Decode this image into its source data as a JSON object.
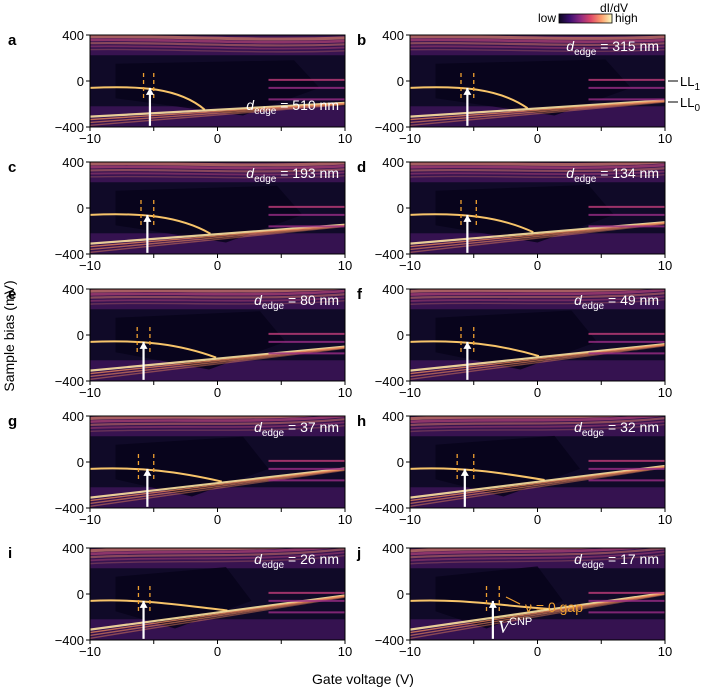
{
  "figure": {
    "xlabel": "Gate voltage (V)",
    "ylabel": "Sample bias (mV)",
    "colorbar": {
      "title": "dI/dV",
      "low_label": "low",
      "high_label": "high",
      "colors": [
        "#0d0820",
        "#3b0f6f",
        "#8c2981",
        "#de4968",
        "#fe9f6d",
        "#fcfdbf"
      ]
    },
    "ll_labels": {
      "ll1": "LL",
      "ll1_sub": "1",
      "ll0": "LL",
      "ll0_sub": "0"
    },
    "annotations": {
      "nu_gap": "ν = 0 gap",
      "v_cnp": "V",
      "v_cnp_sup": "CNP"
    },
    "colors": {
      "arrow": "#ffffff",
      "dashed_markers": "#f0a030",
      "background_dark": "#100a28"
    }
  },
  "chart_data": [
    {
      "type": "heatmap",
      "panel": "a",
      "label_prefix": "d",
      "label_sub": "edge",
      "label_value": " = 510 nm",
      "d_edge_nm": 510,
      "marker_gate_v": -5.3,
      "marker_dash_v": [
        -5.8,
        -5.0
      ],
      "xlim": [
        -10,
        10
      ],
      "ylim": [
        -400,
        400
      ],
      "xticks": [
        "-10",
        "0",
        "10"
      ],
      "yticks": [
        "400",
        "0",
        "-400"
      ]
    },
    {
      "type": "heatmap",
      "panel": "b",
      "label_prefix": "d",
      "label_sub": "edge",
      "label_value": " = 315 nm",
      "d_edge_nm": 315,
      "marker_gate_v": -5.5,
      "marker_dash_v": [
        -6.0,
        -5.0
      ],
      "xlim": [
        -10,
        10
      ],
      "ylim": [
        -400,
        400
      ],
      "xticks": [
        "-10",
        "0",
        "10"
      ],
      "yticks": [
        "400",
        "0",
        "-400"
      ]
    },
    {
      "type": "heatmap",
      "panel": "c",
      "label_prefix": "d",
      "label_sub": "edge",
      "label_value": " = 193 nm",
      "d_edge_nm": 193,
      "marker_gate_v": -5.5,
      "marker_dash_v": [
        -6.0,
        -5.0
      ],
      "xlim": [
        -10,
        10
      ],
      "ylim": [
        -400,
        400
      ],
      "xticks": [
        "-10",
        "0",
        "10"
      ],
      "yticks": [
        "400",
        "0",
        "-400"
      ]
    },
    {
      "type": "heatmap",
      "panel": "d",
      "label_prefix": "d",
      "label_sub": "edge",
      "label_value": " = 134 nm",
      "d_edge_nm": 134,
      "marker_gate_v": -5.5,
      "marker_dash_v": [
        -6.0,
        -4.8
      ],
      "xlim": [
        -10,
        10
      ],
      "ylim": [
        -400,
        400
      ],
      "xticks": [
        "-10",
        "0",
        "10"
      ],
      "yticks": [
        "400",
        "0",
        "-400"
      ]
    },
    {
      "type": "heatmap",
      "panel": "e",
      "label_prefix": "d",
      "label_sub": "edge",
      "label_value": " = 80 nm",
      "d_edge_nm": 80,
      "marker_gate_v": -5.8,
      "marker_dash_v": [
        -6.3,
        -5.3
      ],
      "xlim": [
        -10,
        10
      ],
      "ylim": [
        -400,
        400
      ],
      "xticks": [
        "-10",
        "0",
        "10"
      ],
      "yticks": [
        "400",
        "0",
        "-400"
      ]
    },
    {
      "type": "heatmap",
      "panel": "f",
      "label_prefix": "d",
      "label_sub": "edge",
      "label_value": " = 49 nm",
      "d_edge_nm": 49,
      "marker_gate_v": -5.5,
      "marker_dash_v": [
        -6.0,
        -5.0
      ],
      "xlim": [
        -10,
        10
      ],
      "ylim": [
        -400,
        400
      ],
      "xticks": [
        "-10",
        "0",
        "10"
      ],
      "yticks": [
        "400",
        "0",
        "-400"
      ]
    },
    {
      "type": "heatmap",
      "panel": "g",
      "label_prefix": "d",
      "label_sub": "edge",
      "label_value": " = 37 nm",
      "d_edge_nm": 37,
      "marker_gate_v": -5.5,
      "marker_dash_v": [
        -6.2,
        -5.0
      ],
      "xlim": [
        -10,
        10
      ],
      "ylim": [
        -400,
        400
      ],
      "xticks": [
        "-10",
        "0",
        "10"
      ],
      "yticks": [
        "400",
        "0",
        "-400"
      ]
    },
    {
      "type": "heatmap",
      "panel": "h",
      "label_prefix": "d",
      "label_sub": "edge",
      "label_value": " = 32 nm",
      "d_edge_nm": 32,
      "marker_gate_v": -5.7,
      "marker_dash_v": [
        -6.3,
        -5.0
      ],
      "xlim": [
        -10,
        10
      ],
      "ylim": [
        -400,
        400
      ],
      "xticks": [
        "-10",
        "0",
        "10"
      ],
      "yticks": [
        "400",
        "0",
        "-400"
      ]
    },
    {
      "type": "heatmap",
      "panel": "i",
      "label_prefix": "d",
      "label_sub": "edge",
      "label_value": " = 26 nm",
      "d_edge_nm": 26,
      "marker_gate_v": -5.8,
      "marker_dash_v": [
        -6.2,
        -5.3
      ],
      "xlim": [
        -10,
        10
      ],
      "ylim": [
        -400,
        400
      ],
      "xticks": [
        "-10",
        "0",
        "10"
      ],
      "yticks": [
        "400",
        "0",
        "-400"
      ]
    },
    {
      "type": "heatmap",
      "panel": "j",
      "label_prefix": "d",
      "label_sub": "edge",
      "label_value": " = 17 nm",
      "d_edge_nm": 17,
      "marker_gate_v": -3.5,
      "marker_dash_v": [
        -4.0,
        -3.0
      ],
      "xlim": [
        -10,
        10
      ],
      "ylim": [
        -400,
        400
      ],
      "xticks": [
        "-10",
        "0",
        "10"
      ],
      "yticks": [
        "400",
        "0",
        "-400"
      ]
    }
  ]
}
